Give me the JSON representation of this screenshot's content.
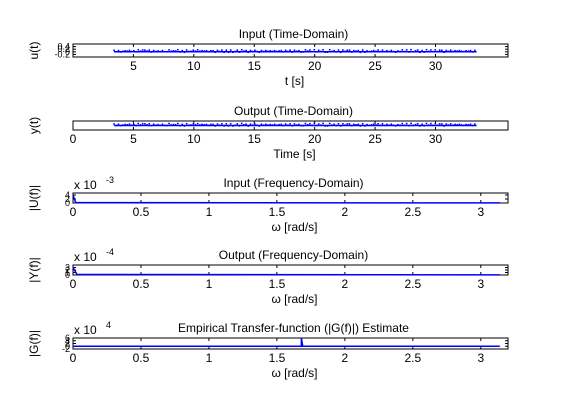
{
  "colors": {
    "series": "#0000ff",
    "axes": "#000000",
    "background": "#ffffff"
  },
  "chart_data": [
    {
      "type": "line",
      "title": "Input (Time-Domain)",
      "xlabel": "t [s]",
      "ylabel": "u(t)",
      "xlim": [
        0,
        36
      ],
      "ylim": [
        -0.4,
        0.6
      ],
      "xticks": [
        "5",
        "10",
        "15",
        "20",
        "25",
        "30"
      ],
      "yticks": [
        "-0.2",
        "0",
        "0.2",
        "0.4"
      ],
      "series": [
        {
          "x": [
            3.4,
            33.4
          ],
          "y": [
            0.0,
            0.0
          ],
          "markers": true
        }
      ]
    },
    {
      "type": "line",
      "title": "Output (Time-Domain)",
      "xlabel": "Time [s]",
      "ylabel": "y(t)",
      "xlim": [
        0,
        36
      ],
      "ylim": [
        -1,
        1
      ],
      "xticks": [
        "0",
        "5",
        "10",
        "15",
        "20",
        "25",
        "30"
      ],
      "yticks": [],
      "series": [
        {
          "x": [
            3.4,
            33.4
          ],
          "y": [
            0.0,
            0.0
          ],
          "markers": true
        }
      ]
    },
    {
      "type": "line",
      "title": "Input (Frequency-Domain)",
      "xlabel": "ω [rad/s]",
      "ylabel": "|U(f)|",
      "exponent": "x 10",
      "exponent_power": "-3",
      "xlim": [
        0,
        3.2
      ],
      "ylim": [
        0,
        5
      ],
      "xticks": [
        "0",
        "0.5",
        "1",
        "1.5",
        "2",
        "2.5",
        "3"
      ],
      "yticks": [
        "0",
        "2",
        "4"
      ],
      "series": [
        {
          "x": [
            0,
            0.02,
            3.14
          ],
          "y": [
            4,
            0.2,
            0.05
          ]
        }
      ]
    },
    {
      "type": "line",
      "title": "Output (Frequency-Domain)",
      "xlabel": "ω [rad/s]",
      "ylabel": "|Y(f)|",
      "exponent": "x 10",
      "exponent_power": "-4",
      "xlim": [
        0,
        3.2
      ],
      "ylim": [
        0,
        4
      ],
      "xticks": [
        "0",
        "0.5",
        "1",
        "1.5",
        "2",
        "2.5",
        "3"
      ],
      "yticks": [
        "0",
        "1",
        "2",
        "3"
      ],
      "series": [
        {
          "x": [
            0,
            0.03,
            3.14
          ],
          "y": [
            3,
            0.2,
            0.05
          ]
        }
      ]
    },
    {
      "type": "line",
      "title": "Empirical Transfer-function (|G(f)|) Estimate",
      "xlabel": "ω [rad/s]",
      "ylabel": "|G(f)|",
      "exponent": "x 10",
      "exponent_power": "4",
      "xlim": [
        0,
        3.2
      ],
      "ylim": [
        -2,
        6
      ],
      "xticks": [
        "0",
        "0.5",
        "1",
        "1.5",
        "2",
        "2.5",
        "3"
      ],
      "yticks": [
        "-2",
        "0",
        "2",
        "4",
        "6"
      ],
      "series": [
        {
          "x": [
            0,
            1.68,
            1.68,
            1.69,
            3.14
          ],
          "y": [
            0,
            0,
            6,
            0,
            0
          ]
        }
      ]
    }
  ]
}
